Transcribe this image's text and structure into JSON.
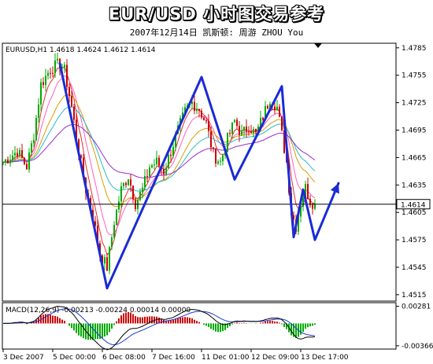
{
  "header": {
    "title": "EUR/USD  小时图交易参考",
    "subtitle": "2007年12月14日  凯斯顿: 周游 ZHOU You"
  },
  "chart_data": [
    {
      "type": "candlestick",
      "symbol_label": "EURUSD,H1  1.4618 1.4624 1.4612 1.4614",
      "current_price": 1.4614,
      "current_price_label": "1.4614",
      "ylim": [
        1.4508,
        1.479
      ],
      "y_ticks": [
        1.4785,
        1.4755,
        1.4725,
        1.4695,
        1.4665,
        1.4635,
        1.4605,
        1.4575,
        1.4545,
        1.4515
      ],
      "y_tick_labels": [
        "1.4785",
        "1.4755",
        "1.4725",
        "1.4695",
        "1.4665",
        "1.4635",
        "1.4605",
        "1.4575",
        "1.4545",
        "1.4515"
      ],
      "x_labels": [
        "3 Dec 2007",
        "5 Dec 00:00",
        "6 Dec 08:00",
        "7 Dec 16:00",
        "11 Dec 01:00",
        "12 Dec 09:00",
        "13 Dec 17:00"
      ],
      "x_label_bar_index": [
        0,
        21,
        42,
        63,
        84,
        105,
        126
      ],
      "n_bars": 133,
      "price_path": [
        [
          0,
          1.466
        ],
        [
          6,
          1.4672
        ],
        [
          10,
          1.4655
        ],
        [
          13,
          1.469
        ],
        [
          16,
          1.4745
        ],
        [
          20,
          1.4762
        ],
        [
          24,
          1.4768
        ],
        [
          26,
          1.476
        ],
        [
          29,
          1.472
        ],
        [
          32,
          1.4672
        ],
        [
          35,
          1.463
        ],
        [
          38,
          1.46
        ],
        [
          41,
          1.456
        ],
        [
          44,
          1.4545
        ],
        [
          47,
          1.4595
        ],
        [
          50,
          1.463
        ],
        [
          53,
          1.4645
        ],
        [
          56,
          1.4615
        ],
        [
          59,
          1.463
        ],
        [
          62,
          1.4655
        ],
        [
          65,
          1.466
        ],
        [
          68,
          1.465
        ],
        [
          71,
          1.4672
        ],
        [
          74,
          1.4695
        ],
        [
          77,
          1.4715
        ],
        [
          80,
          1.4725
        ],
        [
          83,
          1.4718
        ],
        [
          86,
          1.4702
        ],
        [
          89,
          1.4668
        ],
        [
          92,
          1.466
        ],
        [
          95,
          1.4685
        ],
        [
          98,
          1.4705
        ],
        [
          101,
          1.469
        ],
        [
          104,
          1.47
        ],
        [
          107,
          1.469
        ],
        [
          110,
          1.471
        ],
        [
          113,
          1.473
        ],
        [
          116,
          1.472
        ],
        [
          118,
          1.469
        ],
        [
          120,
          1.466
        ],
        [
          122,
          1.4605
        ],
        [
          124,
          1.459
        ],
        [
          126,
          1.4615
        ],
        [
          128,
          1.4632
        ],
        [
          130,
          1.4618
        ],
        [
          132,
          1.4614
        ]
      ],
      "wave_line": {
        "color": "#1a2bd6",
        "points": [
          [
            24,
            1.4768
          ],
          [
            44,
            1.4522
          ],
          [
            84,
            1.4753
          ],
          [
            98,
            1.4641
          ],
          [
            118,
            1.4743
          ],
          [
            123,
            1.4578
          ],
          [
            127,
            1.463
          ],
          [
            132,
            1.4575
          ],
          [
            142,
            1.4637
          ]
        ],
        "arrowhead": true
      }
    },
    {
      "type": "macd",
      "label": "MACD(12,26,9) -0.00213 -0.00224 0.00014 0.00000",
      "ylim": [
        -0.0042,
        0.0034
      ],
      "y_ticks": [
        0.00281,
        -0.00366
      ],
      "y_tick_labels": [
        "0.00281",
        "-0.00366"
      ]
    }
  ],
  "colors": {
    "bull": "#00aa00",
    "bear": "#cc0000",
    "wave": "#1a2bd6",
    "price_line": "#000000",
    "macd_signal": "#1a3ad6",
    "macd_main": "#000000"
  }
}
